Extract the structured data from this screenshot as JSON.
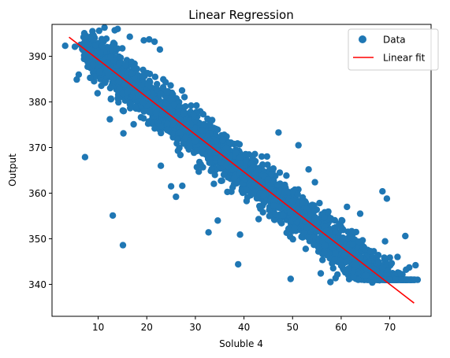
{
  "chart_data": {
    "type": "scatter",
    "title": "Linear Regression",
    "xlabel": "Soluble 4",
    "ylabel": "Output",
    "xlim": [
      0.5,
      78.5
    ],
    "ylim": [
      333.0,
      397.0
    ],
    "x_ticks": [
      10,
      20,
      30,
      40,
      50,
      60,
      70
    ],
    "y_ticks": [
      340,
      350,
      360,
      370,
      380,
      390
    ],
    "grid": false,
    "legend_position": "top-right",
    "series": [
      {
        "name": "Data",
        "kind": "scatter",
        "color": "#1f77b4",
        "trend": {
          "x_range": [
            4,
            75
          ],
          "slope": -0.82,
          "intercept": 397.4
        },
        "points": [
          [
            3.2,
            392.3
          ],
          [
            5.2,
            392.1
          ],
          [
            5.6,
            384.9
          ],
          [
            6.0,
            386.0
          ],
          [
            7.3,
            394.2
          ],
          [
            7.3,
            367.9
          ],
          [
            8.9,
            393.1
          ],
          [
            10.2,
            395.6
          ],
          [
            11.3,
            396.3
          ],
          [
            12.4,
            376.2
          ],
          [
            13.0,
            355.1
          ],
          [
            13.4,
            395.7
          ],
          [
            14.0,
            396.0
          ],
          [
            15.1,
            348.6
          ],
          [
            15.2,
            373.1
          ],
          [
            16.5,
            394.3
          ],
          [
            17.3,
            375.1
          ],
          [
            19.4,
            393.5
          ],
          [
            20.5,
            393.7
          ],
          [
            21.6,
            393.2
          ],
          [
            22.7,
            391.5
          ],
          [
            22.9,
            366.0
          ],
          [
            25.0,
            361.5
          ],
          [
            26.0,
            359.2
          ],
          [
            27.3,
            361.6
          ],
          [
            30.7,
            364.7
          ],
          [
            32.7,
            351.4
          ],
          [
            34.6,
            354.0
          ],
          [
            38.8,
            344.4
          ],
          [
            39.2,
            350.9
          ],
          [
            47.1,
            373.3
          ],
          [
            49.6,
            341.2
          ],
          [
            51.2,
            370.5
          ],
          [
            53.3,
            365.2
          ],
          [
            54.6,
            362.4
          ],
          [
            55.8,
            342.4
          ],
          [
            57.8,
            340.5
          ],
          [
            60.1,
            350.0
          ],
          [
            61.2,
            357.0
          ],
          [
            63.9,
            355.5
          ],
          [
            66.4,
            340.4
          ],
          [
            67.9,
            340.9
          ],
          [
            68.5,
            360.4
          ],
          [
            69.4,
            358.8
          ],
          [
            70.6,
            342.4
          ],
          [
            71.6,
            346.0
          ],
          [
            72.6,
            342.2
          ],
          [
            73.2,
            350.6
          ],
          [
            74.0,
            343.7
          ],
          [
            75.3,
            344.2
          ]
        ]
      },
      {
        "name": "Linear fit",
        "kind": "line",
        "color": "#ff0000",
        "x": [
          4,
          75
        ],
        "y": [
          394.2,
          335.9
        ]
      }
    ]
  }
}
